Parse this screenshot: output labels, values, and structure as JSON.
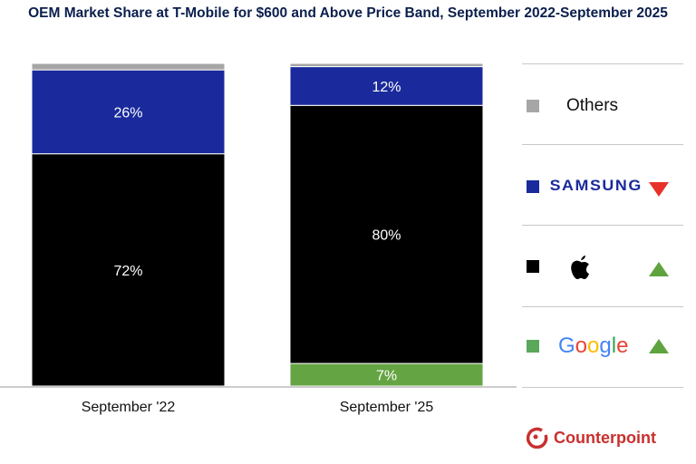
{
  "title": "OEM Market Share at T-Mobile for $600 and Above Price Band, September 2022-September 2025",
  "chart_data": {
    "type": "bar",
    "stacked": true,
    "title": "OEM Market Share at T-Mobile for $600 and Above Price Band, September 2022-September 2025",
    "categories": [
      "September '22",
      "September '25"
    ],
    "ylim": [
      0,
      100
    ],
    "grid": false,
    "legend": "right",
    "series": [
      {
        "name": "Google",
        "color": "#64a443",
        "values": [
          0,
          7
        ],
        "labels": [
          "",
          "7%"
        ]
      },
      {
        "name": "Apple",
        "color": "#000000",
        "values": [
          72,
          80
        ],
        "labels": [
          "72%",
          "80%"
        ]
      },
      {
        "name": "Samsung",
        "color": "#1a2a9c",
        "values": [
          26,
          12
        ],
        "labels": [
          "26%",
          "12%"
        ]
      },
      {
        "name": "Others",
        "color": "#a6a6a6",
        "values": [
          2,
          1
        ],
        "labels": [
          "",
          ""
        ]
      }
    ]
  },
  "legend": {
    "others": {
      "label": "Others",
      "color": "#a6a6a6"
    },
    "samsung": {
      "logo": "SAMSUNG",
      "color": "#1a2a9c",
      "trend": "down",
      "trend_color": "#e8302a"
    },
    "apple": {
      "logo": "apple-logo",
      "color": "#000000",
      "trend": "up",
      "trend_color": "#5fa33e"
    },
    "google": {
      "logo": "Google",
      "color": "#5aa85a",
      "trend": "up",
      "trend_color": "#5fa33e"
    }
  },
  "brand": "Counterpoint"
}
